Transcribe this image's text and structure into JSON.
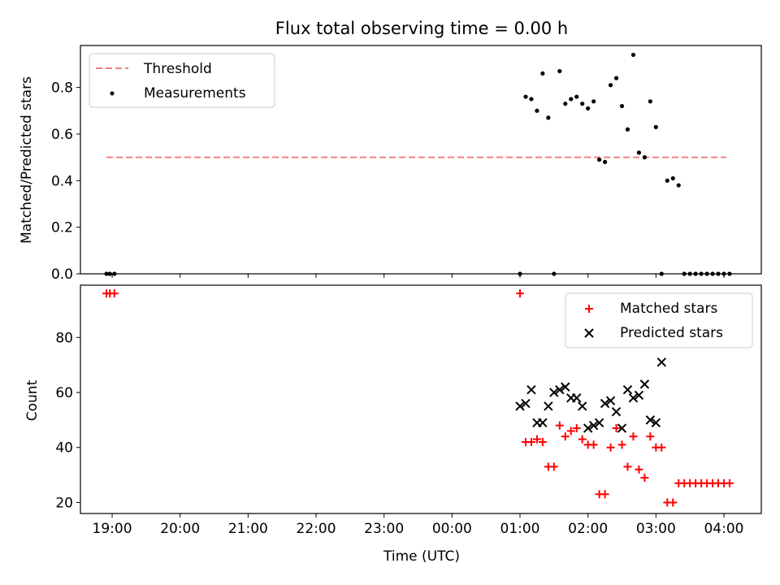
{
  "title": "Flux total observing time = 0.00 h",
  "chart_data": [
    {
      "type": "scatter",
      "ylabel": "Matched/Predicted stars",
      "xlabel": "",
      "x_ticks": [
        "19:00",
        "20:00",
        "21:00",
        "22:00",
        "23:00",
        "00:00",
        "01:00",
        "02:00",
        "03:00",
        "04:00"
      ],
      "y_ticks": [
        "0.0",
        "0.2",
        "0.4",
        "0.6",
        "0.8"
      ],
      "xlim": [
        "18:32",
        "04:33"
      ],
      "ylim": [
        0,
        0.98
      ],
      "legend_position": "top-left",
      "threshold": {
        "name": "Threshold",
        "color": "#f08080",
        "style": "dashed",
        "value": 0.5,
        "x_range": [
          "18:55",
          "04:02"
        ]
      },
      "series": [
        {
          "name": "Measurements",
          "color": "#000000",
          "points": [
            [
              "18:55",
              0
            ],
            [
              "18:58",
              0
            ],
            [
              "19:02",
              0
            ],
            [
              "01:00",
              0
            ],
            [
              "01:05",
              0.76
            ],
            [
              "01:10",
              0.75
            ],
            [
              "01:15",
              0.7
            ],
            [
              "01:20",
              0.86
            ],
            [
              "01:25",
              0.67
            ],
            [
              "01:30",
              0
            ],
            [
              "01:35",
              0.87
            ],
            [
              "01:40",
              0.73
            ],
            [
              "01:45",
              0.75
            ],
            [
              "01:50",
              0.76
            ],
            [
              "01:55",
              0.73
            ],
            [
              "02:00",
              0.71
            ],
            [
              "02:05",
              0.74
            ],
            [
              "02:10",
              0.49
            ],
            [
              "02:15",
              0.48
            ],
            [
              "02:20",
              0.81
            ],
            [
              "02:25",
              0.84
            ],
            [
              "02:30",
              0.72
            ],
            [
              "02:35",
              0.62
            ],
            [
              "02:40",
              0.94
            ],
            [
              "02:45",
              0.52
            ],
            [
              "02:50",
              0.5
            ],
            [
              "02:55",
              0.74
            ],
            [
              "03:00",
              0.63
            ],
            [
              "03:05",
              0
            ],
            [
              "03:10",
              0.4
            ],
            [
              "03:15",
              0.41
            ],
            [
              "03:20",
              0.38
            ],
            [
              "03:25",
              0
            ],
            [
              "03:30",
              0
            ],
            [
              "03:35",
              0
            ],
            [
              "03:40",
              0
            ],
            [
              "03:45",
              0
            ],
            [
              "03:50",
              0
            ],
            [
              "03:55",
              0
            ],
            [
              "04:00",
              0
            ],
            [
              "04:05",
              0
            ]
          ]
        }
      ]
    },
    {
      "type": "scatter",
      "ylabel": "Count",
      "xlabel": "Time (UTC)",
      "x_ticks": [
        "19:00",
        "20:00",
        "21:00",
        "22:00",
        "23:00",
        "00:00",
        "01:00",
        "02:00",
        "03:00",
        "04:00"
      ],
      "y_ticks": [
        "20",
        "40",
        "60",
        "80"
      ],
      "xlim": [
        "18:32",
        "04:33"
      ],
      "ylim": [
        16,
        99
      ],
      "legend_position": "top-right",
      "series": [
        {
          "name": "Matched stars",
          "color": "#ff0000",
          "marker": "plus",
          "points": [
            [
              "18:55",
              96
            ],
            [
              "18:58",
              96
            ],
            [
              "19:02",
              96
            ],
            [
              "01:00",
              96
            ],
            [
              "01:05",
              42
            ],
            [
              "01:10",
              42
            ],
            [
              "01:15",
              43
            ],
            [
              "01:20",
              42
            ],
            [
              "01:25",
              33
            ],
            [
              "01:30",
              33
            ],
            [
              "01:35",
              48
            ],
            [
              "01:40",
              44
            ],
            [
              "01:45",
              46
            ],
            [
              "01:50",
              47
            ],
            [
              "01:55",
              43
            ],
            [
              "02:00",
              41
            ],
            [
              "02:05",
              41
            ],
            [
              "02:10",
              23
            ],
            [
              "02:15",
              23
            ],
            [
              "02:20",
              40
            ],
            [
              "02:25",
              47
            ],
            [
              "02:30",
              41
            ],
            [
              "02:35",
              33
            ],
            [
              "02:40",
              44
            ],
            [
              "02:45",
              32
            ],
            [
              "02:50",
              29
            ],
            [
              "02:55",
              44
            ],
            [
              "03:00",
              40
            ],
            [
              "03:05",
              40
            ],
            [
              "03:10",
              20
            ],
            [
              "03:15",
              20
            ],
            [
              "03:20",
              27
            ],
            [
              "03:25",
              27
            ],
            [
              "03:30",
              27
            ],
            [
              "03:35",
              27
            ],
            [
              "03:40",
              27
            ],
            [
              "03:45",
              27
            ],
            [
              "03:50",
              27
            ],
            [
              "03:55",
              27
            ],
            [
              "04:00",
              27
            ],
            [
              "04:05",
              27
            ]
          ]
        },
        {
          "name": "Predicted stars",
          "color": "#000000",
          "marker": "x",
          "points": [
            [
              "01:00",
              55
            ],
            [
              "01:05",
              56
            ],
            [
              "01:10",
              61
            ],
            [
              "01:15",
              49
            ],
            [
              "01:20",
              49
            ],
            [
              "01:25",
              55
            ],
            [
              "01:30",
              60
            ],
            [
              "01:35",
              61
            ],
            [
              "01:40",
              62
            ],
            [
              "01:45",
              58
            ],
            [
              "01:50",
              58
            ],
            [
              "01:55",
              55
            ],
            [
              "02:00",
              47
            ],
            [
              "02:05",
              48
            ],
            [
              "02:10",
              49
            ],
            [
              "02:15",
              56
            ],
            [
              "02:20",
              57
            ],
            [
              "02:25",
              53
            ],
            [
              "02:30",
              47
            ],
            [
              "02:35",
              61
            ],
            [
              "02:40",
              58
            ],
            [
              "02:45",
              59
            ],
            [
              "02:50",
              63
            ],
            [
              "02:55",
              50
            ],
            [
              "03:00",
              49
            ],
            [
              "03:05",
              71
            ]
          ]
        }
      ]
    }
  ]
}
